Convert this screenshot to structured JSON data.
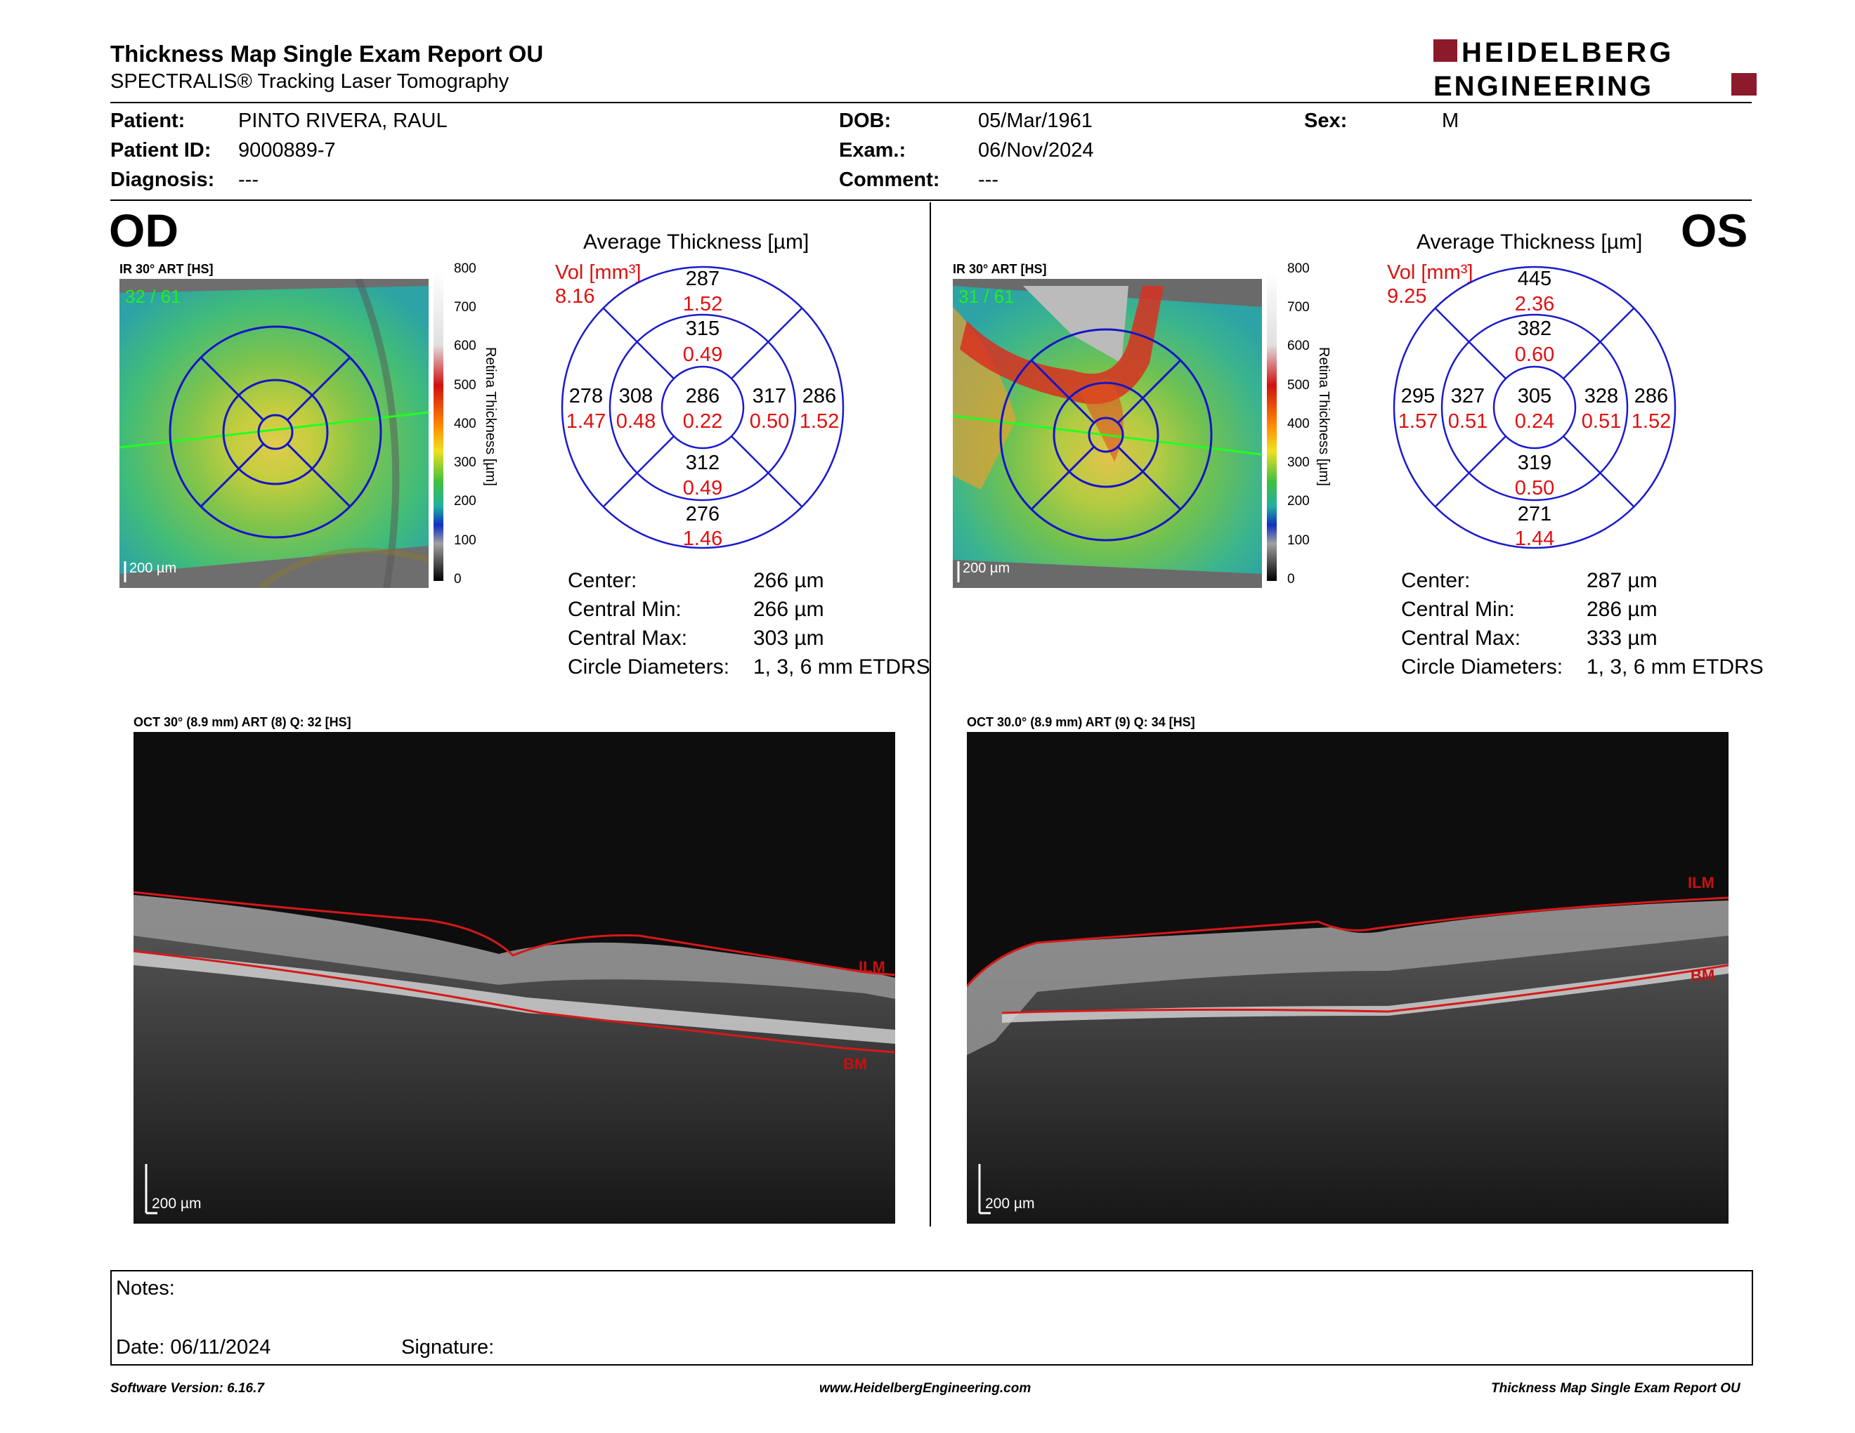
{
  "header": {
    "title": "Thickness Map Single Exam Report OU",
    "subtitle": "SPECTRALIS® Tracking Laser Tomography",
    "logo_line1": "HEIDELBERG",
    "logo_line2": "ENGINEERING"
  },
  "patient": {
    "patient_label": "Patient:",
    "patient_value": "PINTO RIVERA, RAUL",
    "id_label": "Patient ID:",
    "id_value": "9000889-7",
    "diagnosis_label": "Diagnosis:",
    "diagnosis_value": "---",
    "dob_label": "DOB:",
    "dob_value": "05/Mar/1961",
    "exam_label": "Exam.:",
    "exam_value": "06/Nov/2024",
    "comment_label": "Comment:",
    "comment_value": "---",
    "sex_label": "Sex:",
    "sex_value": "M"
  },
  "od": {
    "eye": "OD",
    "ir_label": "IR 30° ART [HS]",
    "frames": "32 / 61",
    "scale": "200 µm",
    "avg_title": "Average Thickness [µm]",
    "vol_label": "Vol [mm³]",
    "vol_value": "8.16",
    "grid": {
      "center": {
        "t": "286",
        "v": "0.22"
      },
      "inner_sup": {
        "t": "315",
        "v": "0.49"
      },
      "inner_inf": {
        "t": "312",
        "v": "0.49"
      },
      "inner_temp": {
        "t": "308",
        "v": "0.48"
      },
      "inner_nas": {
        "t": "317",
        "v": "0.50"
      },
      "outer_sup": {
        "t": "287",
        "v": "1.52"
      },
      "outer_inf": {
        "t": "276",
        "v": "1.46"
      },
      "outer_temp": {
        "t": "278",
        "v": "1.47"
      },
      "outer_nas": {
        "t": "286",
        "v": "1.52"
      }
    },
    "stats": [
      {
        "label": "Center:",
        "value": "266 µm"
      },
      {
        "label": "Central Min:",
        "value": "266 µm"
      },
      {
        "label": "Central Max:",
        "value": "303 µm"
      },
      {
        "label": "Circle Diameters:",
        "value": "1, 3, 6 mm ETDRS"
      }
    ],
    "oct_label": "OCT 30° (8.9 mm) ART (8) Q: 32 [HS]",
    "oct_scale": "200 µm",
    "ilm": "ILM",
    "bm": "BM"
  },
  "os": {
    "eye": "OS",
    "ir_label": "IR 30° ART [HS]",
    "frames": "31 / 61",
    "scale": "200 µm",
    "avg_title": "Average Thickness [µm]",
    "vol_label": "Vol [mm³]",
    "vol_value": "9.25",
    "grid": {
      "center": {
        "t": "305",
        "v": "0.24"
      },
      "inner_sup": {
        "t": "382",
        "v": "0.60"
      },
      "inner_inf": {
        "t": "319",
        "v": "0.50"
      },
      "inner_temp": {
        "t": "327",
        "v": "0.51"
      },
      "inner_nas": {
        "t": "328",
        "v": "0.51"
      },
      "outer_sup": {
        "t": "445",
        "v": "2.36"
      },
      "outer_inf": {
        "t": "271",
        "v": "1.44"
      },
      "outer_temp": {
        "t": "295",
        "v": "1.57"
      },
      "outer_nas": {
        "t": "286",
        "v": "1.52"
      }
    },
    "stats": [
      {
        "label": "Center:",
        "value": "287 µm"
      },
      {
        "label": "Central Min:",
        "value": "286 µm"
      },
      {
        "label": "Central Max:",
        "value": "333 µm"
      },
      {
        "label": "Circle Diameters:",
        "value": "1, 3, 6 mm ETDRS"
      }
    ],
    "oct_label": "OCT 30.0° (8.9 mm) ART (9) Q: 34 [HS]",
    "oct_scale": "200 µm",
    "ilm": "ILM",
    "bm": "BM"
  },
  "colorbar": {
    "ticks": [
      "800",
      "700",
      "600",
      "500",
      "400",
      "300",
      "200",
      "100",
      "0"
    ],
    "label": "Retina Thickness [µm]"
  },
  "notes": {
    "notes_label": "Notes:",
    "date_label": "Date: 06/11/2024",
    "signature_label": "Signature:"
  },
  "footer": {
    "software": "Software Version: 6.16.7",
    "website": "www.HeidelbergEngineering.com",
    "report": "Thickness Map Single Exam Report OU"
  },
  "colors": {
    "red_text": "#e01010",
    "grid_blue": "#1a1ad0",
    "logo_red": "#8b1a2b"
  }
}
